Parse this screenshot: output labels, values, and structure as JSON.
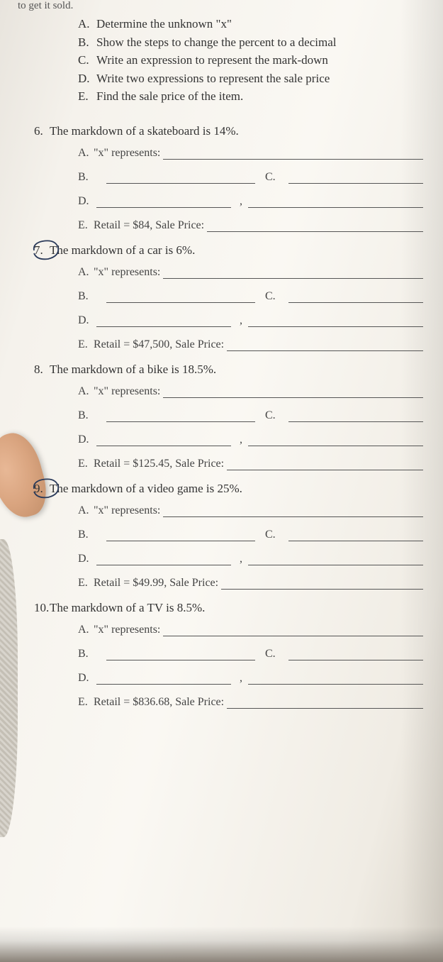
{
  "cropTop": "to get it sold.",
  "instructions": [
    {
      "letter": "A.",
      "text": "Determine the unknown \"x\""
    },
    {
      "letter": "B.",
      "text": "Show the steps to change the percent to a decimal"
    },
    {
      "letter": "C.",
      "text": "Write an expression to represent the mark-down"
    },
    {
      "letter": "D.",
      "text": "Write two expressions to represent the sale price"
    },
    {
      "letter": "E.",
      "text": "Find the sale price of the item."
    }
  ],
  "problems": [
    {
      "num": "6.",
      "title": "The markdown of a skateboard is 14%.",
      "circled": false,
      "a_label": "A.",
      "a_text": "\"x\" represents:",
      "b_label": "B.",
      "c_label": "C.",
      "d_label": "D.",
      "e_label": "E.",
      "e_text": "Retail = $84, Sale Price:"
    },
    {
      "num": "7.",
      "title": "The markdown of a car is 6%.",
      "circled": true,
      "a_label": "A.",
      "a_text": "\"x\" represents:",
      "b_label": "B.",
      "c_label": "C.",
      "d_label": "D.",
      "e_label": "E.",
      "e_text": "Retail = $47,500, Sale Price:"
    },
    {
      "num": "8.",
      "title": "The markdown of a bike is 18.5%.",
      "circled": false,
      "a_label": "A.",
      "a_text": "\"x\" represents:",
      "b_label": "B.",
      "c_label": "C.",
      "d_label": "D.",
      "e_label": "E.",
      "e_text": "Retail = $125.45, Sale Price:"
    },
    {
      "num": "9.",
      "title": "The markdown of a video game is 25%.",
      "circled": true,
      "a_label": "A.",
      "a_text": "\"x\" represents:",
      "b_label": "B.",
      "c_label": "C.",
      "d_label": "D.",
      "e_label": "E.",
      "e_text": "Retail = $49.99, Sale Price:"
    },
    {
      "num": "10.",
      "title": "The markdown of a TV is 8.5%.",
      "circled": false,
      "a_label": "A.",
      "a_text": "\"x\" represents:",
      "b_label": "B.",
      "c_label": "C.",
      "d_label": "D.",
      "e_label": "E.",
      "e_text": "Retail = $836.68, Sale Price:"
    }
  ]
}
